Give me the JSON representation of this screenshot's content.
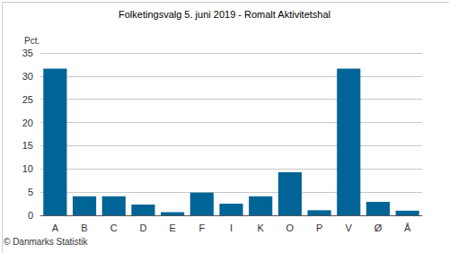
{
  "chart_data": {
    "type": "bar",
    "title": "Folketingsvalg 5. juni 2019 - Romalt Aktivitetshal",
    "ylabel": "Pct.",
    "categories": [
      "A",
      "B",
      "C",
      "D",
      "E",
      "F",
      "I",
      "K",
      "O",
      "P",
      "V",
      "Ø",
      "Å"
    ],
    "values": [
      31.6,
      4.1,
      4.1,
      2.3,
      0.7,
      4.9,
      2.5,
      4.1,
      9.3,
      1.1,
      31.6,
      2.9,
      1.0
    ],
    "color": "#006496",
    "ylim": [
      0,
      35
    ],
    "yticks": [
      0,
      5,
      10,
      15,
      20,
      25,
      30,
      35
    ],
    "grid": true,
    "annotations": [
      "© Danmarks Statistik"
    ]
  }
}
